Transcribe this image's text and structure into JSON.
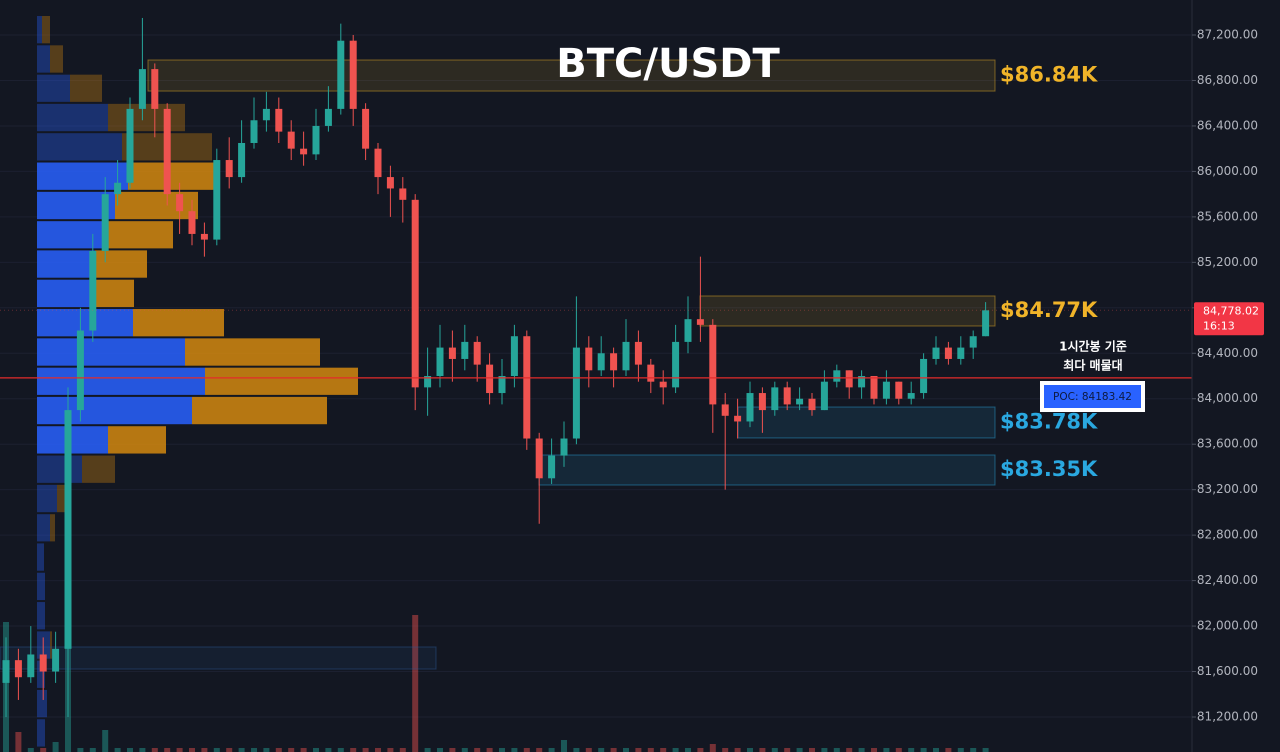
{
  "chart_data": {
    "type": "candlestick",
    "title": "BTC/USDT",
    "ylim": [
      80892,
      87508
    ],
    "yticks": [
      {
        "value": 87200,
        "label": "87,200.00"
      },
      {
        "value": 86800,
        "label": "86,800.00"
      },
      {
        "value": 86400,
        "label": "86,400.00"
      },
      {
        "value": 86000,
        "label": "86,000.00"
      },
      {
        "value": 85600,
        "label": "85,600.00"
      },
      {
        "value": 85200,
        "label": "85,200.00"
      },
      {
        "value": 84800,
        "label": "84,800.00"
      },
      {
        "value": 84400,
        "label": "84,400.00"
      },
      {
        "value": 84000,
        "label": "84,000.00"
      },
      {
        "value": 83600,
        "label": "83,600.00"
      },
      {
        "value": 83200,
        "label": "83,200.00"
      },
      {
        "value": 82800,
        "label": "82,800.00"
      },
      {
        "value": 82400,
        "label": "82,400.00"
      },
      {
        "value": 82000,
        "label": "82,000.00"
      },
      {
        "value": 81600,
        "label": "81,600.00"
      },
      {
        "value": 81200,
        "label": "81,200.00"
      }
    ],
    "grid": true,
    "up_color": "#26a69a",
    "down_color": "#ef5350",
    "open": [
      81500,
      81700,
      81550,
      81750,
      81600,
      81800,
      83900,
      84600,
      85300,
      85800,
      85900,
      86550,
      86900,
      86550,
      85800,
      85650,
      85450,
      85400,
      86100,
      85950,
      86250,
      86450,
      86550,
      86350,
      86200,
      86150,
      86400,
      86550,
      87150,
      86550,
      86200,
      85950,
      85850,
      85750,
      84100,
      84200,
      84450,
      84350,
      84500,
      84300,
      84050,
      84200,
      84550,
      83650,
      83300,
      83500,
      83650,
      84450,
      84250,
      84400,
      84250,
      84500,
      84300,
      84150,
      84100,
      84500,
      84700,
      84650,
      83950,
      83850,
      83800,
      84050,
      83900,
      84100,
      83950,
      84000,
      83900,
      84150,
      84250,
      84100,
      84200,
      84000,
      84150,
      84000,
      84050,
      84350,
      84450,
      84350,
      84450,
      84550
    ],
    "high": [
      81900,
      81800,
      82000,
      81900,
      81950,
      84100,
      84800,
      85450,
      85950,
      86100,
      86650,
      87350,
      86950,
      86600,
      85900,
      85750,
      85550,
      86200,
      86300,
      86450,
      86650,
      86700,
      86650,
      86450,
      86350,
      86550,
      86750,
      87300,
      87200,
      86600,
      86250,
      86050,
      85950,
      85800,
      84450,
      84650,
      84600,
      84650,
      84550,
      84400,
      84350,
      84650,
      84600,
      83700,
      83650,
      83800,
      84900,
      84550,
      84550,
      84450,
      84700,
      84600,
      84350,
      84250,
      84650,
      84900,
      85250,
      84700,
      84050,
      84000,
      84150,
      84100,
      84150,
      84150,
      84100,
      84050,
      84250,
      84300,
      84250,
      84250,
      84200,
      84250,
      84150,
      84150,
      84400,
      84550,
      84500,
      84550,
      84600,
      84850
    ],
    "low": [
      81200,
      81350,
      81500,
      81350,
      81500,
      81200,
      83800,
      84500,
      85200,
      85700,
      85850,
      86450,
      86300,
      85700,
      85450,
      85350,
      85250,
      85350,
      85850,
      85900,
      86200,
      86350,
      86250,
      86100,
      86050,
      86100,
      86350,
      86500,
      86400,
      86100,
      85800,
      85600,
      85550,
      83900,
      83850,
      84100,
      84150,
      84250,
      84150,
      83950,
      83950,
      84100,
      83550,
      82900,
      83250,
      83400,
      83600,
      84100,
      84200,
      84100,
      84200,
      84150,
      84050,
      83950,
      84050,
      84400,
      84500,
      83700,
      83200,
      83650,
      83750,
      83700,
      83850,
      83900,
      83900,
      83850,
      83900,
      84100,
      84000,
      84000,
      83950,
      83950,
      83950,
      83950,
      84000,
      84300,
      84300,
      84300,
      84350,
      84550
    ],
    "close": [
      81700,
      81550,
      81750,
      81600,
      81800,
      83900,
      84600,
      85300,
      85800,
      85900,
      86550,
      86900,
      86550,
      85800,
      85650,
      85450,
      85400,
      86100,
      85950,
      86250,
      86450,
      86550,
      86350,
      86200,
      86150,
      86400,
      86550,
      87150,
      86550,
      86200,
      85950,
      85850,
      85750,
      84100,
      84200,
      84450,
      84350,
      84500,
      84300,
      84050,
      84200,
      84550,
      83650,
      83300,
      83500,
      83650,
      84450,
      84250,
      84400,
      84250,
      84500,
      84300,
      84150,
      84100,
      84500,
      84700,
      84650,
      83950,
      83850,
      83800,
      84050,
      83900,
      84100,
      83950,
      84000,
      83900,
      84150,
      84250,
      84100,
      84200,
      84000,
      84150,
      84000,
      84050,
      84350,
      84450,
      84350,
      84450,
      84550,
      84778.02
    ],
    "volume": [
      130,
      20,
      4,
      4,
      10,
      110,
      4,
      4,
      22,
      4,
      4,
      4,
      4,
      4,
      4,
      4,
      4,
      4,
      4,
      4,
      4,
      4,
      4,
      4,
      4,
      4,
      4,
      4,
      4,
      4,
      4,
      4,
      4,
      137,
      4,
      4,
      4,
      4,
      4,
      4,
      4,
      4,
      4,
      4,
      4,
      12,
      4,
      4,
      4,
      4,
      4,
      4,
      4,
      4,
      4,
      4,
      4,
      8,
      4,
      4,
      4,
      4,
      4,
      4,
      4,
      4,
      4,
      4,
      4,
      4,
      4,
      4,
      4,
      4,
      4,
      4,
      4,
      4,
      4,
      4
    ],
    "profile": {
      "bins": [
        87376,
        87118,
        86860,
        86603,
        86345,
        86087,
        85829,
        85571,
        85314,
        85056,
        84798,
        84540,
        84282,
        84025,
        83767,
        83509,
        83251,
        82993,
        82736,
        82478,
        82220,
        81962,
        81704,
        81447,
        81189,
        80931
      ],
      "buy": [
        5,
        13,
        33,
        71,
        85,
        91,
        78,
        66,
        58,
        55,
        96,
        148,
        168,
        155,
        71,
        45,
        20,
        13,
        7,
        8,
        8,
        13,
        8,
        10,
        8
      ],
      "sell": [
        8,
        13,
        32,
        77,
        90,
        86,
        83,
        70,
        52,
        42,
        91,
        135,
        153,
        135,
        58,
        33,
        13,
        5,
        0,
        0,
        0,
        2,
        0,
        0,
        0
      ],
      "value_area": [
        83509,
        86087
      ],
      "buy_color": "#2962ff",
      "sell_color": "#d4880f"
    },
    "zones": [
      {
        "label": "$86.84K",
        "ylim": [
          86707,
          86980
        ],
        "color": "#f0b429"
      },
      {
        "label": "$84.77K",
        "ylim": [
          84640,
          84904
        ],
        "color": "#f0b429"
      },
      {
        "label": "$83.78K",
        "ylim": [
          83655,
          83927
        ],
        "color": "#2aa8e0"
      },
      {
        "label": "$83.35K",
        "ylim": [
          83241,
          83505
        ],
        "color": "#2aa8e0"
      },
      {
        "ylim": [
          81622,
          81816
        ],
        "color": "#2a5a9a"
      }
    ],
    "poc": 84183.42,
    "poc_label": "POC: 84183.42",
    "poc_color": "#e32b2b",
    "annotation": [
      "1시간봉 기준",
      "최다 매물대"
    ],
    "last_price": 84778.02,
    "last_price_label": "84,778.02",
    "countdown": "16:13"
  }
}
